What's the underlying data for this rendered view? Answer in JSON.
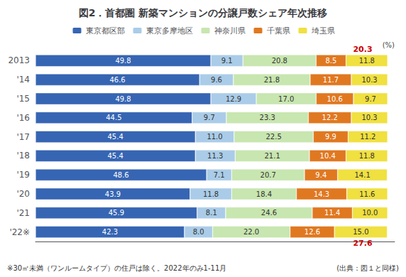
{
  "chart_data": {
    "type": "bar",
    "orientation": "horizontal",
    "stacked": true,
    "title": "図2．首都圏 新築マンションの分譲戸数シェア年次推移",
    "xlabel": "(%)",
    "categories": [
      "2013",
      "'14",
      "'15",
      "'16",
      "'17",
      "'18",
      "'19",
      "'20",
      "'21",
      "'22※"
    ],
    "series": [
      {
        "name": "東京都区部",
        "color": "#3665b3",
        "values": [
          49.8,
          46.6,
          49.8,
          44.5,
          45.4,
          45.4,
          48.6,
          43.9,
          45.9,
          42.3
        ],
        "value_labels": [
          "49.8",
          "46.6",
          "49.8",
          "44.5",
          "45.4",
          "45.4",
          "48.6",
          "43.9",
          "45.9",
          "42.3"
        ]
      },
      {
        "name": "東京多摩地区",
        "color": "#aacce8",
        "values": [
          9.1,
          9.6,
          12.9,
          9.7,
          11.0,
          11.3,
          7.1,
          11.8,
          8.1,
          8.0
        ],
        "value_labels": [
          "9.1",
          "9.6",
          "12.9",
          "9.7",
          "11.0",
          "11.3",
          "7.1",
          "11.8",
          "8.1",
          "8.0"
        ]
      },
      {
        "name": "神奈川県",
        "color": "#c8e6b0",
        "values": [
          20.8,
          21.8,
          17.0,
          23.3,
          22.5,
          21.1,
          20.7,
          18.4,
          24.6,
          22.0
        ],
        "value_labels": [
          "20.8",
          "21.8",
          "17.0",
          "23.3",
          "22.5",
          "21.1",
          "20.7",
          "18.4",
          "24.6",
          "22.0"
        ]
      },
      {
        "name": "千葉県",
        "color": "#e07820",
        "values": [
          8.5,
          11.7,
          10.6,
          12.2,
          9.9,
          10.4,
          9.4,
          14.3,
          11.4,
          12.6
        ],
        "value_labels": [
          "8.5",
          "11.7",
          "10.6",
          "12.2",
          "9.9",
          "10.4",
          "9.4",
          "14.3",
          "11.4",
          "12.6"
        ]
      },
      {
        "name": "埼玉県",
        "color": "#f0e040",
        "values": [
          11.8,
          10.3,
          9.7,
          10.3,
          11.2,
          11.8,
          14.1,
          11.6,
          10.0,
          15.0
        ],
        "value_labels": [
          "11.8",
          "10.3",
          "9.7",
          "10.3",
          "11.2",
          "11.8",
          "14.1",
          "11.6",
          "10.0",
          "15.0"
        ]
      }
    ],
    "xlim": [
      0,
      102
    ],
    "tick_labels": "y",
    "grid": false,
    "legend": "top",
    "data_labels": true,
    "annotations": [
      {
        "text": "20.3",
        "category": "2013",
        "color": "#cc0000"
      },
      {
        "text": "27.6",
        "category": "'22※",
        "color": "#cc0000"
      }
    ],
    "footnotes": [
      "※30㎡未満（ワンルームタイプ）の住戸は除く。2022年のみ1-11月",
      "(出典：図１と同様)"
    ]
  }
}
